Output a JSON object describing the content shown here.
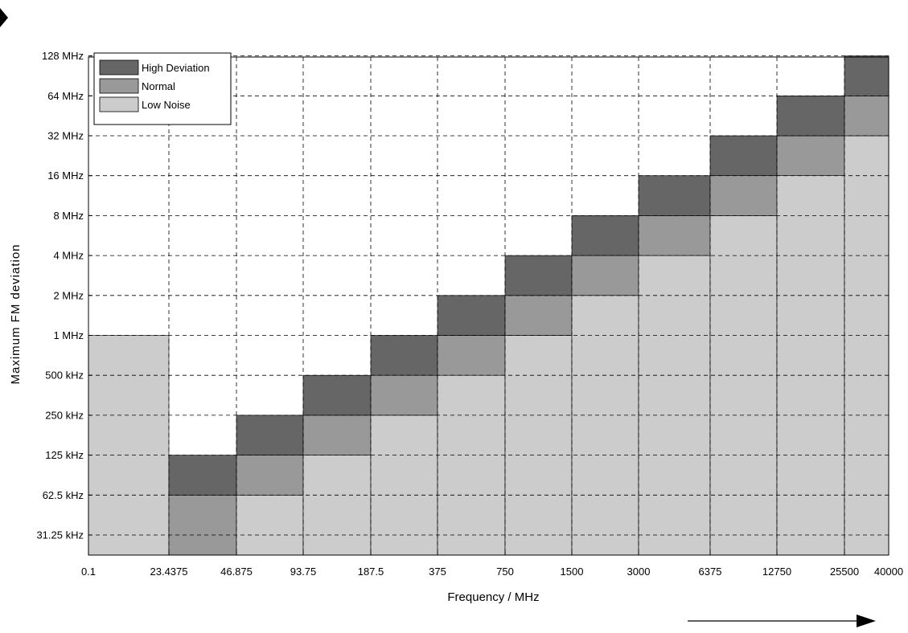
{
  "chart_data": {
    "type": "heatmap",
    "title": "",
    "xlabel": "Frequency / MHz",
    "ylabel": "Maximum FM deviation",
    "x_ticks": [
      "0.1",
      "23.4375",
      "46.875",
      "93.75",
      "187.5",
      "375",
      "750",
      "1500",
      "3000",
      "6375",
      "12750",
      "25500",
      "40000"
    ],
    "y_ticks": [
      "31.25 kHz",
      "62.5 kHz",
      "125 kHz",
      "250 kHz",
      "500 kHz",
      "1 MHz",
      "2 MHz",
      "4 MHz",
      "8 MHz",
      "16 MHz",
      "32 MHz",
      "64 MHz",
      "128 MHz"
    ],
    "grid": true,
    "legend_position": "top-left",
    "legend": [
      {
        "name": "High Deviation",
        "color": "#666666"
      },
      {
        "name": "Normal",
        "color": "#999999"
      },
      {
        "name": "Low Noise",
        "color": "#cccccc"
      }
    ],
    "bands": [
      {
        "f_min": "0.1",
        "f_max": "23.4375",
        "low_noise": "1 MHz",
        "normal": null,
        "high_deviation": null
      },
      {
        "f_min": "23.4375",
        "f_max": "46.875",
        "low_noise": null,
        "normal": "62.5 kHz",
        "high_deviation": "125 kHz"
      },
      {
        "f_min": "46.875",
        "f_max": "93.75",
        "low_noise": "62.5 kHz",
        "normal": "125 kHz",
        "high_deviation": "250 kHz"
      },
      {
        "f_min": "93.75",
        "f_max": "187.5",
        "low_noise": "125 kHz",
        "normal": "250 kHz",
        "high_deviation": "500 kHz"
      },
      {
        "f_min": "187.5",
        "f_max": "375",
        "low_noise": "250 kHz",
        "normal": "500 kHz",
        "high_deviation": "1 MHz"
      },
      {
        "f_min": "375",
        "f_max": "750",
        "low_noise": "500 kHz",
        "normal": "1 MHz",
        "high_deviation": "2 MHz"
      },
      {
        "f_min": "750",
        "f_max": "1500",
        "low_noise": "1 MHz",
        "normal": "2 MHz",
        "high_deviation": "4 MHz"
      },
      {
        "f_min": "1500",
        "f_max": "3000",
        "low_noise": "2 MHz",
        "normal": "4 MHz",
        "high_deviation": "8 MHz"
      },
      {
        "f_min": "3000",
        "f_max": "6375",
        "low_noise": "4 MHz",
        "normal": "8 MHz",
        "high_deviation": "16 MHz"
      },
      {
        "f_min": "6375",
        "f_max": "12750",
        "low_noise": "8 MHz",
        "normal": "16 MHz",
        "high_deviation": "32 MHz"
      },
      {
        "f_min": "12750",
        "f_max": "25500",
        "low_noise": "16 MHz",
        "normal": "32 MHz",
        "high_deviation": "64 MHz"
      },
      {
        "f_min": "25500",
        "f_max": "40000",
        "low_noise": "32 MHz",
        "normal": "64 MHz",
        "high_deviation": "128 MHz"
      }
    ]
  }
}
